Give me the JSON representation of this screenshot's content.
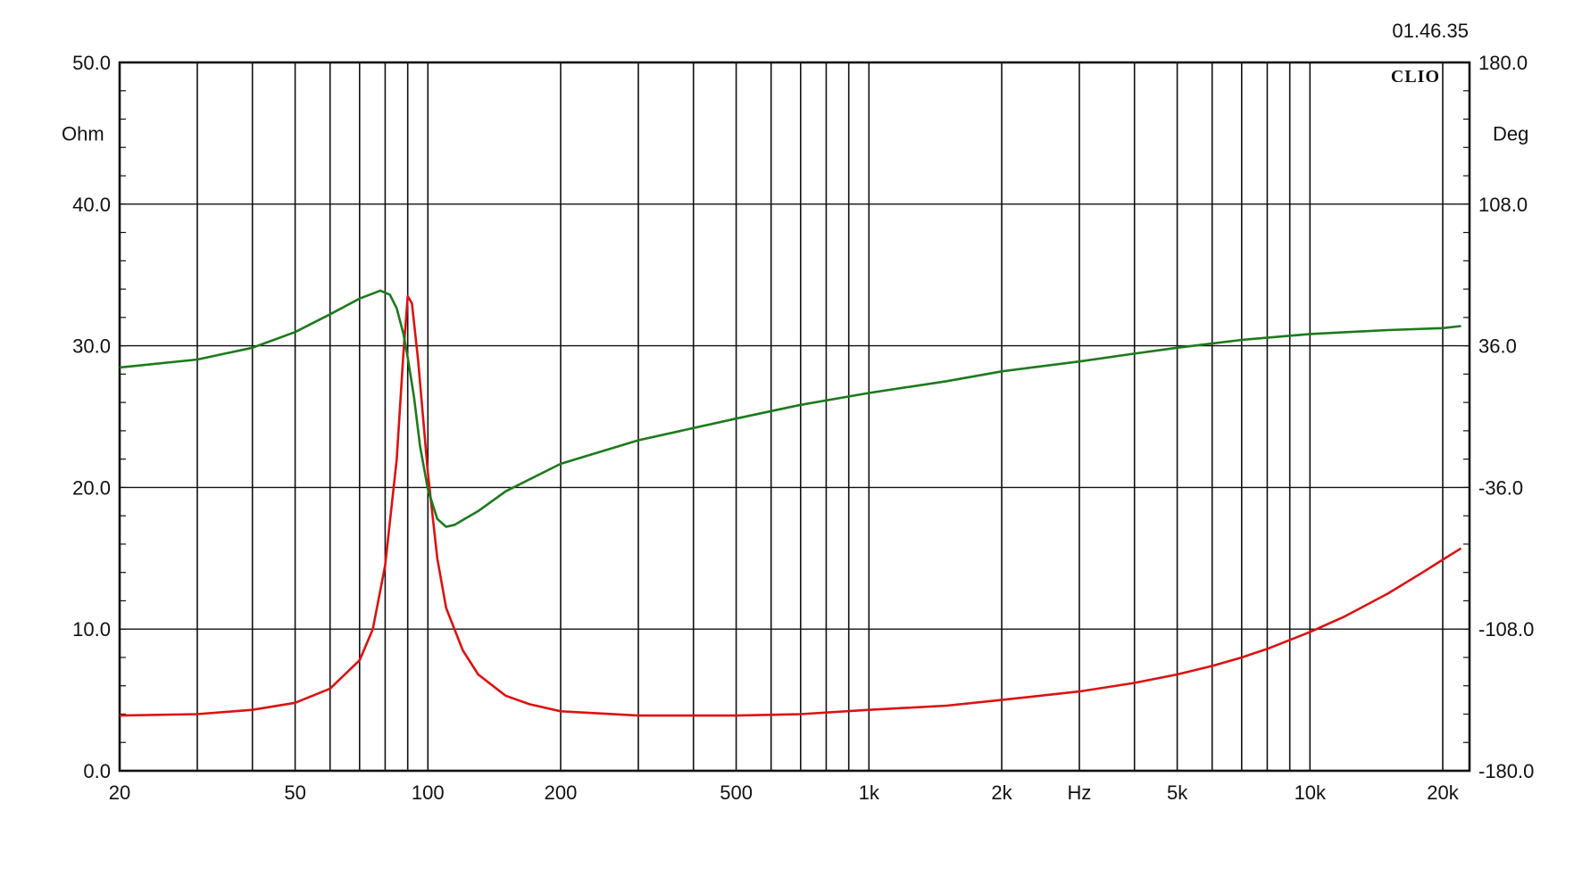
{
  "header": {
    "timestamp": "01.46.35",
    "brand": "CLIO"
  },
  "chart_data": {
    "type": "line",
    "x_scale": "log",
    "xlim": [
      20,
      23000
    ],
    "x_ticks": [
      {
        "value": 20,
        "label": "20"
      },
      {
        "value": 50,
        "label": "50"
      },
      {
        "value": 100,
        "label": "100"
      },
      {
        "value": 200,
        "label": "200"
      },
      {
        "value": 500,
        "label": "500"
      },
      {
        "value": 1000,
        "label": "1k"
      },
      {
        "value": 2000,
        "label": "2k"
      },
      {
        "value": 5000,
        "label": "5k"
      },
      {
        "value": 10000,
        "label": "10k"
      },
      {
        "value": 20000,
        "label": "20k"
      }
    ],
    "xlabel": "Hz",
    "xlabel_position_value": 3000,
    "x_gridlines": [
      20,
      30,
      40,
      50,
      60,
      70,
      80,
      90,
      100,
      200,
      300,
      400,
      500,
      600,
      700,
      800,
      900,
      1000,
      2000,
      3000,
      4000,
      5000,
      6000,
      7000,
      8000,
      9000,
      10000,
      20000
    ],
    "left_axis": {
      "unit": "Ohm",
      "ylim": [
        0,
        50
      ],
      "ticks": [
        {
          "value": 0,
          "label": "0.0"
        },
        {
          "value": 10,
          "label": "10.0"
        },
        {
          "value": 20,
          "label": "20.0"
        },
        {
          "value": 30,
          "label": "30.0"
        },
        {
          "value": 40,
          "label": "40.0"
        },
        {
          "value": 50,
          "label": "50.0"
        }
      ]
    },
    "right_axis": {
      "unit": "Deg",
      "ylim": [
        -180,
        180
      ],
      "ticks": [
        {
          "value": -180,
          "label": "-180.0"
        },
        {
          "value": -108,
          "label": "-108.0"
        },
        {
          "value": -36,
          "label": "-36.0"
        },
        {
          "value": 36,
          "label": "36.0"
        },
        {
          "value": 108,
          "label": "108.0"
        },
        {
          "value": 180,
          "label": "180.0"
        }
      ]
    },
    "grid": true,
    "series": [
      {
        "axis": "left",
        "color": "#dd1111",
        "points": [
          [
            20,
            3.9
          ],
          [
            30,
            4.0
          ],
          [
            40,
            4.3
          ],
          [
            50,
            4.8
          ],
          [
            60,
            5.8
          ],
          [
            70,
            7.8
          ],
          [
            75,
            10.0
          ],
          [
            80,
            14.5
          ],
          [
            85,
            22.0
          ],
          [
            88,
            29.5
          ],
          [
            90,
            33.5
          ],
          [
            92,
            33.0
          ],
          [
            95,
            29.0
          ],
          [
            100,
            21.0
          ],
          [
            105,
            15.0
          ],
          [
            110,
            11.5
          ],
          [
            120,
            8.5
          ],
          [
            130,
            6.8
          ],
          [
            150,
            5.3
          ],
          [
            170,
            4.7
          ],
          [
            200,
            4.2
          ],
          [
            300,
            3.9
          ],
          [
            500,
            3.9
          ],
          [
            700,
            4.0
          ],
          [
            1000,
            4.3
          ],
          [
            1500,
            4.6
          ],
          [
            2000,
            5.0
          ],
          [
            3000,
            5.6
          ],
          [
            4000,
            6.2
          ],
          [
            5000,
            6.8
          ],
          [
            6000,
            7.4
          ],
          [
            7000,
            8.0
          ],
          [
            8000,
            8.6
          ],
          [
            10000,
            9.8
          ],
          [
            12000,
            10.9
          ],
          [
            15000,
            12.5
          ],
          [
            18000,
            14.0
          ],
          [
            20000,
            14.9
          ],
          [
            22000,
            15.7
          ]
        ]
      },
      {
        "axis": "right",
        "color": "#1c7a1c",
        "points": [
          [
            20,
            25
          ],
          [
            30,
            29
          ],
          [
            40,
            35
          ],
          [
            50,
            43
          ],
          [
            60,
            52
          ],
          [
            70,
            60
          ],
          [
            78,
            64
          ],
          [
            82,
            62
          ],
          [
            85,
            55
          ],
          [
            88,
            42
          ],
          [
            90,
            30
          ],
          [
            93,
            10
          ],
          [
            96,
            -15
          ],
          [
            100,
            -37
          ],
          [
            105,
            -52
          ],
          [
            110,
            -56
          ],
          [
            115,
            -55
          ],
          [
            130,
            -48
          ],
          [
            150,
            -38
          ],
          [
            200,
            -24
          ],
          [
            300,
            -12
          ],
          [
            500,
            -1
          ],
          [
            700,
            6
          ],
          [
            1000,
            12
          ],
          [
            1500,
            18
          ],
          [
            2000,
            23
          ],
          [
            3000,
            28
          ],
          [
            4000,
            32
          ],
          [
            5000,
            35
          ],
          [
            7000,
            39
          ],
          [
            10000,
            42
          ],
          [
            15000,
            44
          ],
          [
            20000,
            45
          ],
          [
            22000,
            46
          ]
        ]
      }
    ]
  }
}
